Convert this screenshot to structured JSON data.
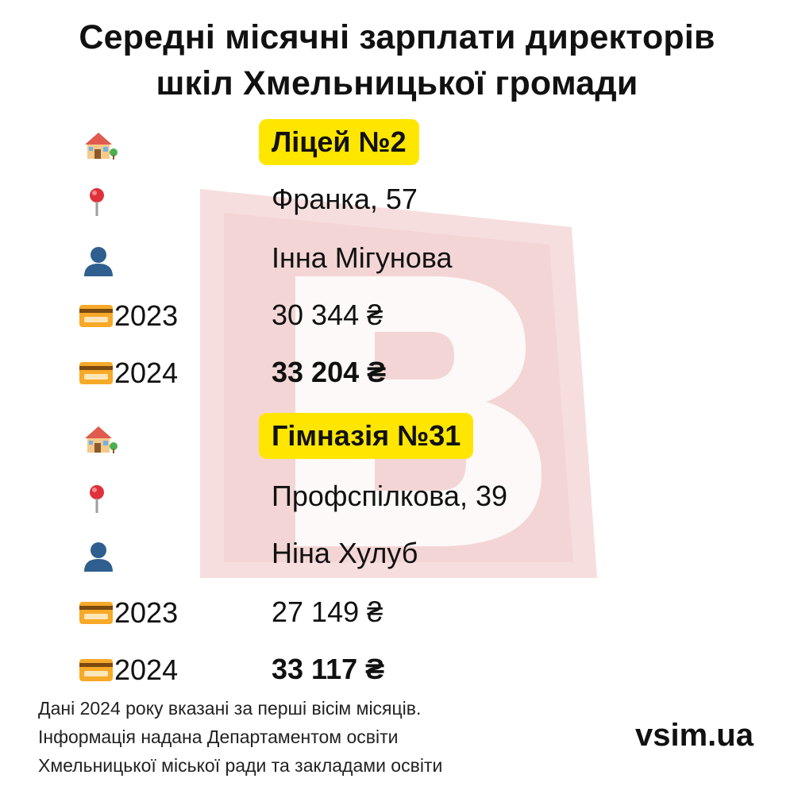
{
  "title_line1": "Середні місячні зарплати директорів",
  "title_line2": "шкіл Хмельницької громади",
  "schools": [
    {
      "name": "Ліцей №2",
      "address": "Франка, 57",
      "director": "Інна Мігунова",
      "y2023_label": "2023",
      "y2023_value": "30 344 ₴",
      "y2024_label": "2024",
      "y2024_value": "33 204 ₴"
    },
    {
      "name": "Гімназія №31",
      "address": "Профспілкова, 39",
      "director": "Ніна Хулуб",
      "y2023_label": "2023",
      "y2023_value": "27 149 ₴",
      "y2024_label": "2024",
      "y2024_value": "33 117 ₴"
    }
  ],
  "footnote": [
    "Дані 2024 року вказані за перші вісім місяців.",
    "Інформація надана Департаментом освіти",
    "Хмельницької міської ради та закладами освіти"
  ],
  "brand": "vsim.ua",
  "colors": {
    "highlight": "#ffe600",
    "watermark": "#f6d9d9"
  },
  "icons": [
    "house-icon",
    "pin-icon",
    "person-icon",
    "credit-card-icon"
  ]
}
